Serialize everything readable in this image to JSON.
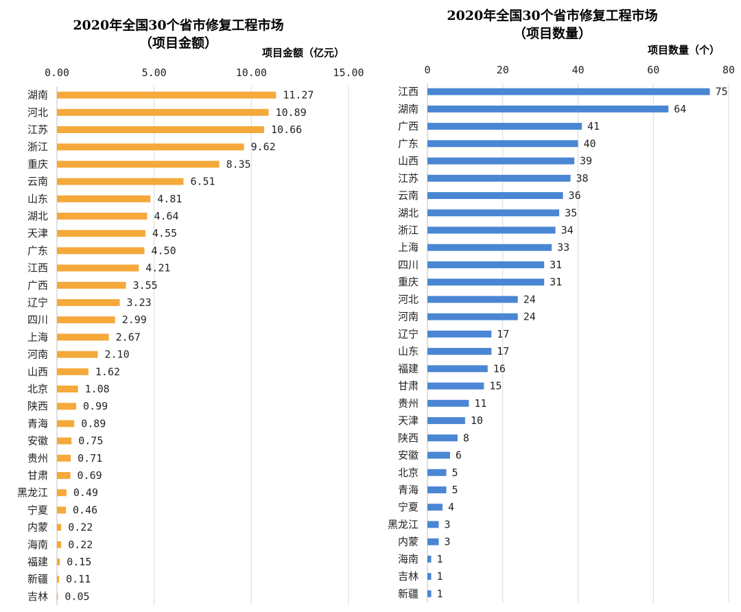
{
  "chart_data": [
    {
      "type": "bar",
      "orientation": "horizontal",
      "title": "2020年全国30个省市修复工程市场",
      "subtitle": "（项目金额）",
      "xlabel": "项目金额（亿元）",
      "xlim": [
        0,
        15
      ],
      "ticks": [
        "0.00",
        "5.00",
        "10.00",
        "15.00"
      ],
      "tick_values": [
        0,
        5,
        10,
        15
      ],
      "decimals": 2,
      "bar_color": "#f5a93b",
      "categories": [
        "湖南",
        "河北",
        "江苏",
        "浙江",
        "重庆",
        "云南",
        "山东",
        "湖北",
        "天津",
        "广东",
        "江西",
        "广西",
        "辽宁",
        "四川",
        "上海",
        "河南",
        "山西",
        "北京",
        "陕西",
        "青海",
        "安徽",
        "贵州",
        "甘肃",
        "黑龙江",
        "宁夏",
        "内蒙",
        "海南",
        "福建",
        "新疆",
        "吉林"
      ],
      "values": [
        11.27,
        10.89,
        10.66,
        9.62,
        8.35,
        6.51,
        4.81,
        4.64,
        4.55,
        4.5,
        4.21,
        3.55,
        3.23,
        2.99,
        2.67,
        2.1,
        1.62,
        1.08,
        0.99,
        0.89,
        0.75,
        0.71,
        0.69,
        0.49,
        0.46,
        0.22,
        0.22,
        0.15,
        0.11,
        0.05
      ]
    },
    {
      "type": "bar",
      "orientation": "horizontal",
      "title": "2020年全国30个省市修复工程市场",
      "subtitle": "（项目数量）",
      "xlabel": "项目数量（个）",
      "xlim": [
        0,
        80
      ],
      "ticks": [
        "0",
        "20",
        "40",
        "60",
        "80"
      ],
      "tick_values": [
        0,
        20,
        40,
        60,
        80
      ],
      "decimals": 0,
      "bar_color": "#4a86d4",
      "categories": [
        "江西",
        "湖南",
        "广西",
        "广东",
        "山西",
        "江苏",
        "云南",
        "湖北",
        "浙江",
        "上海",
        "四川",
        "重庆",
        "河北",
        "河南",
        "辽宁",
        "山东",
        "福建",
        "甘肃",
        "贵州",
        "天津",
        "陕西",
        "安徽",
        "北京",
        "青海",
        "宁夏",
        "黑龙江",
        "内蒙",
        "海南",
        "吉林",
        "新疆"
      ],
      "values": [
        75,
        64,
        41,
        40,
        39,
        38,
        36,
        35,
        34,
        33,
        31,
        31,
        24,
        24,
        17,
        17,
        16,
        15,
        11,
        10,
        8,
        6,
        5,
        5,
        4,
        3,
        3,
        1,
        1,
        1
      ]
    }
  ]
}
